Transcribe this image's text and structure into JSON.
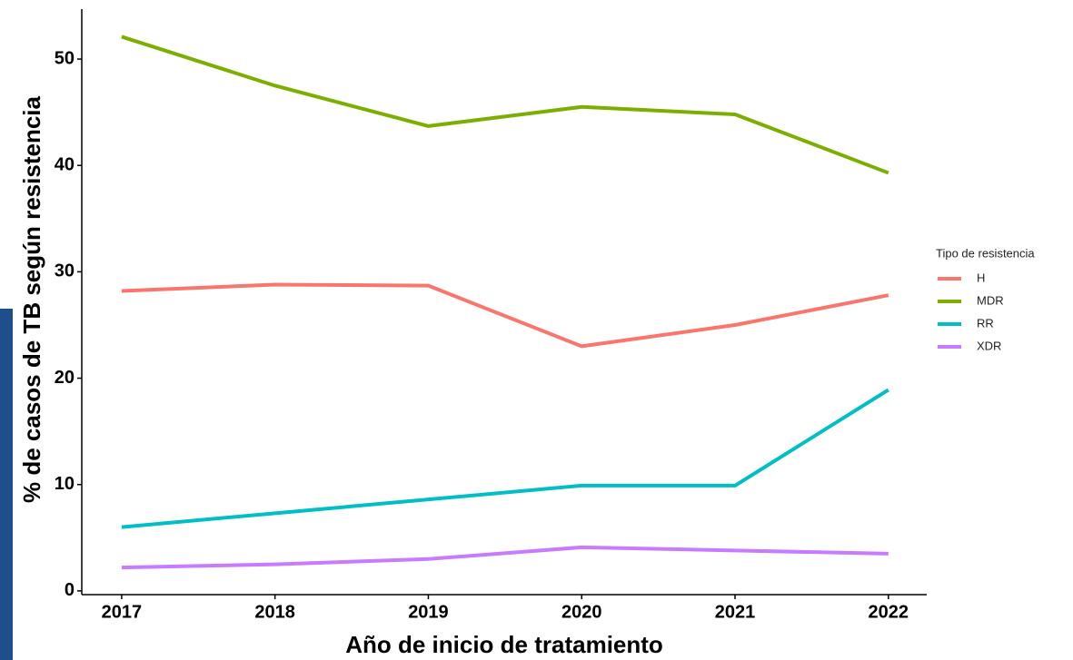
{
  "chart_data": {
    "type": "line",
    "x_label": "Año de inicio de tratamiento",
    "y_label": "% de casos de TB según resistencia",
    "x": [
      2017,
      2018,
      2019,
      2020,
      2021,
      2022
    ],
    "xlim": [
      2016.74,
      2022.25
    ],
    "xticks": [
      2017,
      2018,
      2019,
      2020,
      2021,
      2022
    ],
    "ylim": [
      -0.35,
      54.7
    ],
    "yticks": [
      0,
      10,
      20,
      30,
      40,
      50
    ],
    "legend_title": "Tipo de resistencia",
    "legend_position": "right",
    "series": [
      {
        "name": "H",
        "color": "#f8766d",
        "values": [
          28.2,
          28.8,
          28.7,
          23.0,
          25.0,
          27.8
        ]
      },
      {
        "name": "MDR",
        "color": "#7cae00",
        "values": [
          52.1,
          47.5,
          43.7,
          45.5,
          44.8,
          39.3
        ]
      },
      {
        "name": "RR",
        "color": "#00bfc4",
        "values": [
          6.0,
          7.3,
          8.6,
          9.9,
          9.9,
          18.9
        ]
      },
      {
        "name": "XDR",
        "color": "#c77cff",
        "values": [
          2.2,
          2.5,
          3.0,
          4.1,
          3.8,
          3.5
        ]
      }
    ]
  }
}
